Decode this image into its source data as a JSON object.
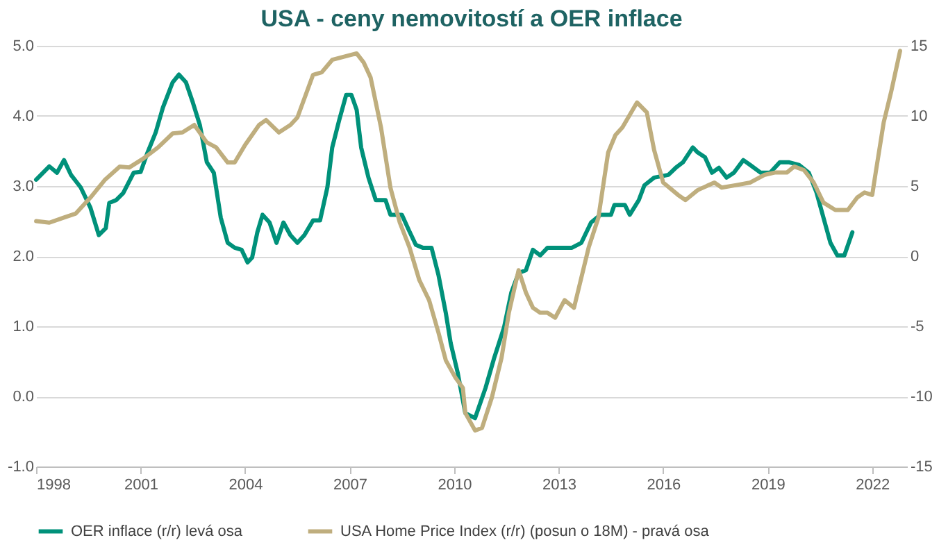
{
  "chart_data": {
    "type": "line",
    "title": "USA - ceny nemovitostí a OER inflace",
    "xlim": [
      1998,
      2023
    ],
    "xticks": [
      1998,
      2001,
      2004,
      2007,
      2010,
      2013,
      2016,
      2019,
      2022
    ],
    "ylim": [
      -1,
      5
    ],
    "yticks": [
      {
        "value": -1,
        "label": "-1.0"
      },
      {
        "value": 0,
        "label": "0.0"
      },
      {
        "value": 1,
        "label": "1.0"
      },
      {
        "value": 2,
        "label": "2.0"
      },
      {
        "value": 3,
        "label": "3.0"
      },
      {
        "value": 4,
        "label": "4.0"
      },
      {
        "value": 5,
        "label": "5.0"
      }
    ],
    "y2lim": [
      -15,
      15
    ],
    "y2ticks": [
      -15,
      -10,
      -5,
      0,
      5,
      10,
      15
    ],
    "grid": "y",
    "legend": "bottom",
    "marker": "none",
    "line_style": "solid",
    "series": [
      {
        "name": "OER inflace (r/r) levá osa",
        "color": "#00917a",
        "x": [
          1998.0,
          1998.38,
          1998.6,
          1998.8,
          1999.0,
          1999.28,
          1999.56,
          1999.8,
          2000.0,
          2000.1,
          2000.3,
          2000.5,
          2000.8,
          2001.0,
          2001.2,
          2001.43,
          2001.64,
          2001.92,
          2002.1,
          2002.3,
          2002.5,
          2002.7,
          2002.9,
          2003.1,
          2003.3,
          2003.5,
          2003.7,
          2003.9,
          2004.07,
          2004.2,
          2004.35,
          2004.5,
          2004.7,
          2004.9,
          2005.1,
          2005.3,
          2005.5,
          2005.7,
          2005.95,
          2006.15,
          2006.36,
          2006.5,
          2006.7,
          2006.9,
          2007.05,
          2007.2,
          2007.33,
          2007.54,
          2007.75,
          2008.03,
          2008.17,
          2008.5,
          2008.7,
          2008.9,
          2009.1,
          2009.35,
          2009.55,
          2009.76,
          2009.9,
          2010.1,
          2010.32,
          2010.6,
          2010.9,
          2011.15,
          2011.43,
          2011.64,
          2011.85,
          2012.06,
          2012.26,
          2012.47,
          2012.68,
          2013.38,
          2013.65,
          2013.93,
          2014.2,
          2014.5,
          2014.6,
          2014.9,
          2015.04,
          2015.3,
          2015.46,
          2015.74,
          2016.15,
          2016.36,
          2016.57,
          2016.85,
          2016.99,
          2017.2,
          2017.4,
          2017.6,
          2017.82,
          2018.03,
          2018.3,
          2018.5,
          2018.8,
          2019.07,
          2019.35,
          2019.6,
          2019.9,
          2020.18,
          2020.4,
          2020.6,
          2020.8,
          2021.0,
          2021.2,
          2021.43
        ],
        "values": [
          3.09,
          3.28,
          3.19,
          3.37,
          3.16,
          2.98,
          2.69,
          2.3,
          2.4,
          2.76,
          2.8,
          2.9,
          3.19,
          3.2,
          3.48,
          3.76,
          4.12,
          4.48,
          4.59,
          4.48,
          4.19,
          3.87,
          3.34,
          3.19,
          2.55,
          2.19,
          2.12,
          2.09,
          1.91,
          1.98,
          2.34,
          2.59,
          2.48,
          2.19,
          2.48,
          2.3,
          2.19,
          2.3,
          2.51,
          2.51,
          2.98,
          3.55,
          3.94,
          4.3,
          4.3,
          4.09,
          3.55,
          3.12,
          2.8,
          2.8,
          2.59,
          2.59,
          2.37,
          2.16,
          2.12,
          2.12,
          1.73,
          1.19,
          0.76,
          0.34,
          -0.24,
          -0.31,
          0.12,
          0.55,
          0.98,
          1.48,
          1.76,
          1.8,
          2.09,
          2.01,
          2.12,
          2.12,
          2.19,
          2.48,
          2.59,
          2.59,
          2.73,
          2.73,
          2.59,
          2.8,
          3.01,
          3.12,
          3.16,
          3.26,
          3.34,
          3.55,
          3.48,
          3.41,
          3.19,
          3.26,
          3.12,
          3.19,
          3.37,
          3.3,
          3.19,
          3.19,
          3.34,
          3.34,
          3.3,
          3.19,
          2.91,
          2.55,
          2.19,
          2.01,
          2.01,
          2.34
        ]
      },
      {
        "name": "USA Home Price Index (r/r) (posun o 18M) - pravá osa",
        "color": "#bfae7e",
        "axis": "y2",
        "x": [
          1998.0,
          1998.38,
          1998.8,
          1999.14,
          1999.56,
          1999.97,
          2000.4,
          2000.67,
          2001.08,
          2001.5,
          2001.92,
          2002.2,
          2002.54,
          2002.9,
          2003.17,
          2003.5,
          2003.7,
          2004.0,
          2004.4,
          2004.6,
          2004.97,
          2005.3,
          2005.5,
          2005.95,
          2006.2,
          2006.5,
          2007.05,
          2007.2,
          2007.4,
          2007.6,
          2007.9,
          2008.17,
          2008.44,
          2008.72,
          2009.0,
          2009.28,
          2009.55,
          2009.76,
          2010.04,
          2010.25,
          2010.32,
          2010.6,
          2010.8,
          2011.08,
          2011.36,
          2011.57,
          2011.85,
          2012.06,
          2012.26,
          2012.47,
          2012.68,
          2012.9,
          2013.17,
          2013.44,
          2013.65,
          2013.86,
          2014.14,
          2014.42,
          2014.63,
          2014.83,
          2015.25,
          2015.53,
          2015.74,
          2016.0,
          2016.43,
          2016.64,
          2016.99,
          2017.47,
          2017.68,
          2018.1,
          2018.5,
          2018.9,
          2019.2,
          2019.55,
          2019.76,
          2020.04,
          2020.32,
          2020.6,
          2020.94,
          2021.3,
          2021.57,
          2021.78,
          2022.0,
          2022.1,
          2022.33,
          2022.54,
          2022.8
        ],
        "values": [
          2.5,
          2.39,
          2.75,
          3.04,
          4.18,
          5.43,
          6.39,
          6.32,
          6.96,
          7.75,
          8.75,
          8.82,
          9.36,
          8.11,
          7.75,
          6.68,
          6.68,
          7.93,
          9.36,
          9.71,
          8.82,
          9.36,
          9.89,
          12.93,
          13.11,
          14.0,
          14.36,
          14.46,
          13.82,
          12.75,
          9.18,
          4.89,
          2.39,
          0.61,
          -1.71,
          -3.14,
          -5.46,
          -7.43,
          -8.68,
          -9.39,
          -11.18,
          -12.43,
          -12.25,
          -10.1,
          -7.25,
          -4.04,
          -1.0,
          -2.6,
          -3.68,
          -4.04,
          -4.04,
          -4.39,
          -3.14,
          -3.68,
          -1.54,
          0.61,
          2.75,
          7.39,
          8.64,
          9.18,
          10.96,
          10.25,
          7.57,
          5.25,
          4.36,
          4.0,
          4.71,
          5.25,
          4.89,
          5.07,
          5.25,
          5.79,
          5.96,
          5.96,
          6.39,
          6.14,
          5.25,
          3.82,
          3.29,
          3.29,
          4.18,
          4.54,
          4.36,
          5.96,
          9.54,
          11.68,
          14.64
        ]
      }
    ]
  }
}
